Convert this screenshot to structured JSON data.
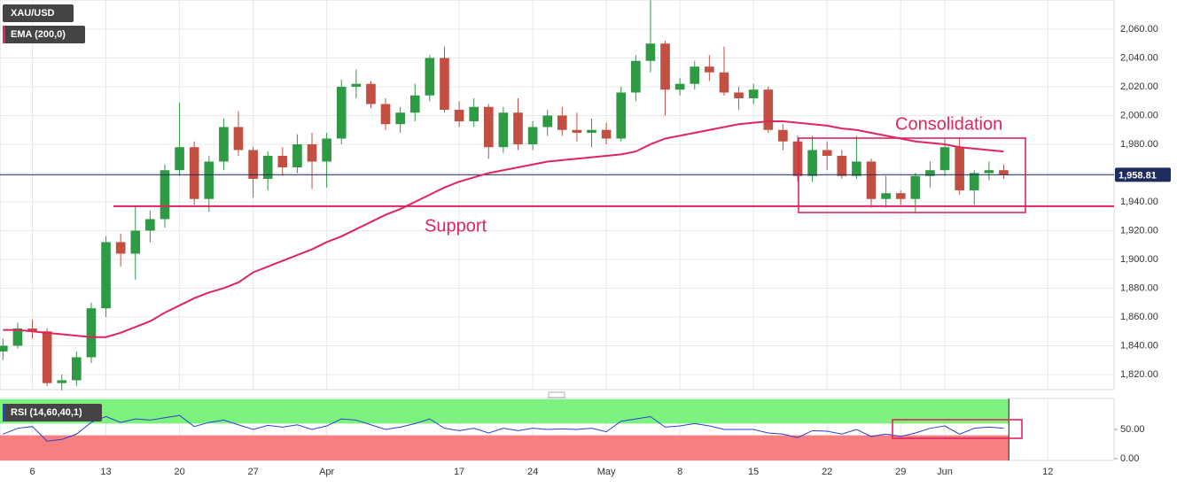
{
  "chart_data": [
    {
      "type": "candlestick",
      "x": [
        -2,
        -1,
        0,
        1,
        2,
        3,
        4,
        5,
        6,
        7,
        8,
        9,
        10,
        11,
        12,
        13,
        14,
        15,
        16,
        17,
        18,
        19,
        20,
        21,
        22,
        23,
        24,
        25,
        26,
        27,
        28,
        29,
        30,
        31,
        32,
        33,
        34,
        35,
        36,
        37,
        38,
        39,
        40,
        41,
        42,
        43,
        44,
        45,
        46,
        47,
        48,
        49,
        50,
        51,
        52,
        53,
        54,
        55,
        56,
        57,
        58,
        59,
        60,
        61,
        62,
        63,
        64,
        65,
        66
      ],
      "xlim": [
        -2.2,
        73.5
      ],
      "xticks": [
        {
          "value": 0,
          "label": "6"
        },
        {
          "value": 5,
          "label": "13"
        },
        {
          "value": 10,
          "label": "20"
        },
        {
          "value": 15,
          "label": "27"
        },
        {
          "value": 20,
          "label": "Apr"
        },
        {
          "value": 29,
          "label": "17"
        },
        {
          "value": 34,
          "label": "24"
        },
        {
          "value": 39,
          "label": "May"
        },
        {
          "value": 44,
          "label": "8"
        },
        {
          "value": 49,
          "label": "15"
        },
        {
          "value": 54,
          "label": "22"
        },
        {
          "value": 59,
          "label": "29"
        },
        {
          "value": 62,
          "label": "Jun"
        },
        {
          "value": 69,
          "label": "12"
        }
      ],
      "ylim": [
        1809.5,
        2080.3
      ],
      "yticks": [
        {
          "value": 1820,
          "label": "1,820.00"
        },
        {
          "value": 1840,
          "label": "1,840.00"
        },
        {
          "value": 1860,
          "label": "1,860.00"
        },
        {
          "value": 1880,
          "label": "1,880.00"
        },
        {
          "value": 1900,
          "label": "1,900.00"
        },
        {
          "value": 1920,
          "label": "1,920.00"
        },
        {
          "value": 1940,
          "label": "1,940.00"
        },
        {
          "value": 1960,
          "label": "1,960.00"
        },
        {
          "value": 1980,
          "label": "1,980.00"
        },
        {
          "value": 2000,
          "label": "2,000.00"
        },
        {
          "value": 2020,
          "label": "2,020.00"
        },
        {
          "value": 2040,
          "label": "2,040.00"
        },
        {
          "value": 2060,
          "label": "2,060.00"
        }
      ],
      "grid": true,
      "series": [
        {
          "name": "XAU/USD",
          "up_color": "#2e9a44",
          "down_color": "#c24f42",
          "open": [
            1836,
            1840,
            1852,
            1850,
            1814,
            1816,
            1832,
            1866,
            1912,
            1904,
            1920,
            1928,
            1962,
            1978,
            1942,
            1968,
            1992,
            1976,
            1956,
            1972,
            1964,
            1980,
            1968,
            1984,
            2020,
            2022,
            2008,
            1994,
            2002,
            2014,
            2040,
            2004,
            1996,
            2006,
            1978,
            2002,
            1980,
            1992,
            2000,
            1990,
            1988,
            1990,
            1984,
            2016,
            2038,
            2050,
            2018,
            2022,
            2034,
            2030,
            2016,
            2012,
            2018,
            1990,
            1982,
            1958,
            1976,
            1972,
            1958,
            1968,
            1942,
            1946,
            1942,
            1958,
            1962,
            1978,
            1948,
            1960,
            1962
          ],
          "high": [
            1845,
            1856,
            1858,
            1852,
            1820,
            1836,
            1870,
            1916,
            1918,
            1937,
            1934,
            1966,
            2009,
            1982,
            1972,
            1998,
            2003,
            1978,
            1975,
            1978,
            1987,
            1988,
            1988,
            2025,
            2032,
            2024,
            2012,
            2006,
            2022,
            2042,
            2048,
            2010,
            2012,
            2008,
            2006,
            2012,
            1996,
            2004,
            2006,
            2002,
            1998,
            1995,
            2020,
            2042,
            2080,
            2052,
            2026,
            2038,
            2042,
            2048,
            2020,
            2022,
            2020,
            1994,
            1986,
            1986,
            1982,
            1976,
            1986,
            1970,
            1958,
            1948,
            1960,
            1968,
            1984,
            1984,
            1962,
            1968,
            1966
          ],
          "low": [
            1830,
            1838,
            1845,
            1812,
            1809,
            1812,
            1828,
            1860,
            1895,
            1886,
            1912,
            1922,
            1958,
            1938,
            1933,
            1962,
            1972,
            1943,
            1948,
            1958,
            1960,
            1949,
            1950,
            1980,
            2012,
            2005,
            1990,
            1988,
            1996,
            2010,
            2002,
            1992,
            1992,
            1970,
            1974,
            1976,
            1976,
            1986,
            1986,
            1982,
            1978,
            1980,
            1982,
            2010,
            2030,
            2000,
            2014,
            2018,
            2024,
            2014,
            2004,
            2008,
            1988,
            1976,
            1954,
            1954,
            1962,
            1956,
            1956,
            1936,
            1936,
            1938,
            1932,
            1950,
            1958,
            1945,
            1938,
            1955,
            1956
          ],
          "close": [
            1840,
            1852,
            1850,
            1814,
            1816,
            1832,
            1866,
            1912,
            1904,
            1920,
            1928,
            1962,
            1978,
            1942,
            1968,
            1992,
            1976,
            1956,
            1972,
            1964,
            1980,
            1968,
            1984,
            2020,
            2022,
            2008,
            1994,
            2002,
            2014,
            2040,
            2004,
            1996,
            2006,
            1978,
            2002,
            1980,
            1992,
            2000,
            1990,
            1988,
            1990,
            1984,
            2016,
            2038,
            2050,
            2018,
            2022,
            2034,
            2030,
            2016,
            2012,
            2018,
            1990,
            1982,
            1958,
            1976,
            1972,
            1958,
            1968,
            1942,
            1946,
            1942,
            1958,
            1962,
            1978,
            1948,
            1960,
            1962,
            1958.81
          ],
          "last_label": "1,958.81",
          "last_color": "#1f2c5c"
        },
        {
          "name": "EMA (200,0)",
          "type": "line",
          "color": "#e0245e",
          "values": [
            1851,
            1851,
            1850,
            1849,
            1848,
            1847,
            1846,
            1846,
            1849,
            1853,
            1857,
            1863,
            1868,
            1873,
            1877,
            1880,
            1884,
            1891,
            1895,
            1899,
            1903,
            1907,
            1912,
            1916,
            1921,
            1926,
            1931,
            1935,
            1940,
            1945,
            1950,
            1954,
            1957,
            1960,
            1962,
            1964,
            1966,
            1968,
            1969,
            1970,
            1971,
            1972,
            1973,
            1975,
            1980,
            1984,
            1986,
            1988,
            1990,
            1992,
            1994,
            1995,
            1996,
            1996,
            1995,
            1994,
            1993,
            1991,
            1990,
            1988,
            1986,
            1984,
            1982,
            1981,
            1980,
            1978,
            1977,
            1976,
            1975
          ]
        }
      ],
      "annotations": [
        {
          "text": "Support",
          "level": 1937,
          "color": "#e0245e"
        },
        {
          "text": "Consolidation",
          "color": "#e0245e"
        }
      ]
    },
    {
      "type": "line",
      "ylim": [
        -3,
        103
      ],
      "yticks": [
        {
          "value": 0,
          "label": "0.00"
        },
        {
          "value": 50,
          "label": "50.00"
        }
      ],
      "upper_band": 60,
      "lower_band": 40,
      "upper_color": "#7ef27e",
      "lower_color": "#f77f7f",
      "series": [
        {
          "name": "RSI (14,60,40,1)",
          "color": "#2a3fd4",
          "values": [
            42,
            52,
            55,
            30,
            33,
            42,
            62,
            72,
            62,
            68,
            66,
            70,
            74,
            55,
            62,
            66,
            58,
            50,
            57,
            54,
            58,
            50,
            56,
            68,
            66,
            58,
            50,
            54,
            60,
            68,
            52,
            48,
            52,
            44,
            52,
            48,
            52,
            50,
            51,
            50,
            52,
            46,
            64,
            68,
            72,
            54,
            56,
            60,
            56,
            50,
            50,
            50,
            44,
            42,
            36,
            48,
            47,
            42,
            50,
            38,
            42,
            38,
            44,
            52,
            56,
            42,
            52,
            54,
            52
          ]
        }
      ]
    }
  ]
}
